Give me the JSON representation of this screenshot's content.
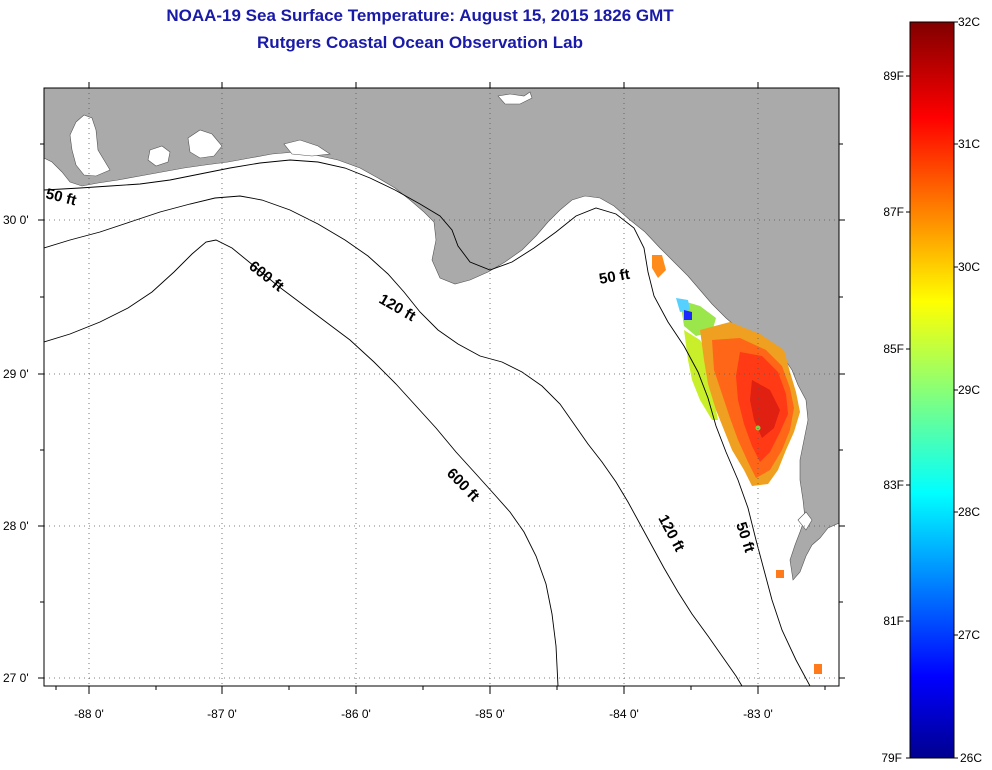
{
  "title": {
    "line1": "NOAA-19 Sea Surface Temperature:  August 15, 2015 1826 GMT",
    "line2": "Rutgers Coastal Ocean Observation Lab"
  },
  "map": {
    "lon_range": [
      -88.33,
      -82.37
    ],
    "lat_range": [
      26.95,
      30.85
    ],
    "lon_ticks": [
      {
        "value": -88,
        "label": "-88 0'"
      },
      {
        "value": -87,
        "label": "-87 0'"
      },
      {
        "value": -86,
        "label": "-86 0'"
      },
      {
        "value": -85,
        "label": "-85 0'"
      },
      {
        "value": -84,
        "label": "-84 0'"
      },
      {
        "value": -83,
        "label": "-83 0'"
      }
    ],
    "lat_ticks": [
      {
        "value": 30,
        "label": "30 0'"
      },
      {
        "value": 29,
        "label": "29 0'"
      },
      {
        "value": 28,
        "label": "28 0'"
      },
      {
        "value": 27,
        "label": "27 0'"
      }
    ],
    "contour_labels": {
      "ft50_west": "50 ft",
      "ft50_mid": "50 ft",
      "ft50_south": "50 ft",
      "ft120_mid": "120 ft",
      "ft120_south": "120 ft",
      "ft600_north": "600 ft",
      "ft600_south": "600 ft"
    },
    "colors": {
      "land": "#aaaaaa",
      "water": "#ffffff",
      "contour": "#000000"
    }
  },
  "colorbar": {
    "celsius_labels": [
      "32C",
      "31C",
      "30C",
      "29C",
      "28C",
      "27C",
      "26C"
    ],
    "fahrenheit_labels": [
      "89F",
      "87F",
      "85F",
      "83F",
      "81F",
      "79F"
    ],
    "range_c": [
      26,
      32
    ]
  }
}
